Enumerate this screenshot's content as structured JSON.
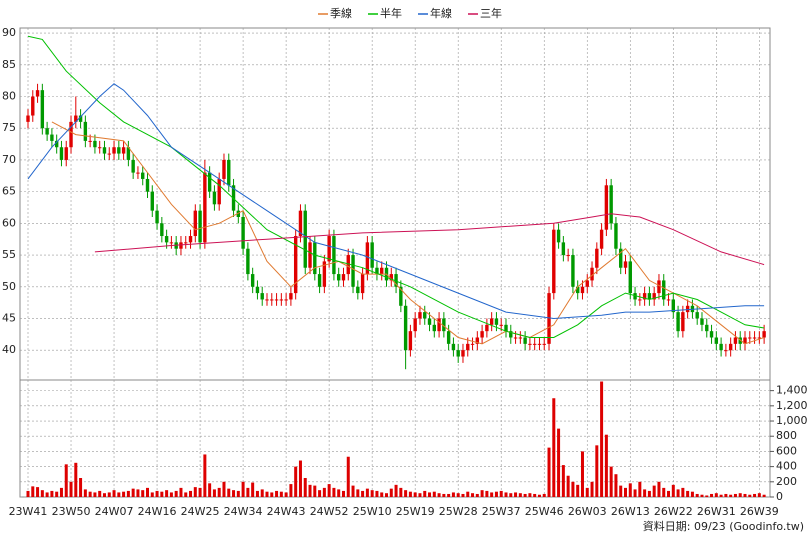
{
  "chart_data": {
    "type": "candlestick",
    "categories": [
      "23W41",
      null,
      null,
      null,
      null,
      null,
      null,
      null,
      null,
      "23W50",
      null,
      null,
      null,
      null,
      null,
      null,
      null,
      null,
      "24W07",
      null,
      null,
      null,
      null,
      null,
      null,
      null,
      null,
      "24W16",
      null,
      null,
      null,
      null,
      null,
      null,
      null,
      null,
      "24W25",
      null,
      null,
      null,
      null,
      null,
      null,
      null,
      null,
      "24W34",
      null,
      null,
      null,
      null,
      null,
      null,
      null,
      null,
      "24W43",
      null,
      null,
      null,
      null,
      null,
      null,
      null,
      null,
      "24W52",
      null,
      null,
      null,
      null,
      null,
      null,
      null,
      null,
      "25W10",
      null,
      null,
      null,
      null,
      null,
      null,
      null,
      null,
      "25W19",
      null,
      null,
      null,
      null,
      null,
      null,
      null,
      null,
      "25W28",
      null,
      null,
      null,
      null,
      null,
      null,
      null,
      null,
      "25W37",
      null,
      null,
      null,
      null,
      null,
      null,
      null,
      null,
      "25W46",
      null,
      null,
      null,
      null,
      null,
      null,
      null,
      null,
      "26W03",
      null,
      null,
      null,
      null,
      null,
      null,
      null,
      null,
      "26W13",
      null,
      null,
      null,
      null,
      null,
      null,
      null,
      null,
      "26W22",
      null,
      null,
      null,
      null,
      null,
      null,
      null,
      null,
      "26W31",
      null,
      null,
      null,
      null,
      null,
      null,
      null,
      null,
      "26W39",
      null
    ],
    "ohlc": [
      [
        76,
        78,
        75,
        77
      ],
      [
        77,
        81,
        76,
        80
      ],
      [
        80,
        82,
        79,
        81
      ],
      [
        81,
        82,
        74,
        75
      ],
      [
        75,
        76,
        73,
        74
      ],
      [
        74,
        75,
        72,
        73
      ],
      [
        73,
        74,
        71,
        72
      ],
      [
        72,
        73,
        69,
        70
      ],
      [
        70,
        73,
        69,
        72
      ],
      [
        72,
        77,
        71,
        76
      ],
      [
        76,
        80,
        75,
        77
      ],
      [
        77,
        78,
        75,
        76
      ],
      [
        76,
        77,
        72,
        73
      ],
      [
        73,
        74,
        72,
        73
      ],
      [
        73,
        74,
        71,
        72
      ],
      [
        72,
        73,
        71,
        72
      ],
      [
        72,
        73,
        70,
        71
      ],
      [
        71,
        72,
        70,
        71
      ],
      [
        71,
        73,
        70,
        72
      ],
      [
        72,
        73,
        70,
        71
      ],
      [
        71,
        73,
        70,
        72
      ],
      [
        72,
        73,
        69,
        70
      ],
      [
        70,
        71,
        67,
        68
      ],
      [
        68,
        69,
        67,
        68
      ],
      [
        68,
        69,
        66,
        67
      ],
      [
        67,
        68,
        64,
        65
      ],
      [
        65,
        66,
        61,
        62
      ],
      [
        62,
        63,
        59,
        60
      ],
      [
        60,
        61,
        57,
        58
      ],
      [
        58,
        59,
        56,
        57
      ],
      [
        57,
        58,
        56,
        57
      ],
      [
        57,
        58,
        55,
        56
      ],
      [
        56,
        58,
        55,
        57
      ],
      [
        57,
        58,
        56,
        57
      ],
      [
        57,
        59,
        56,
        58
      ],
      [
        58,
        63,
        57,
        62
      ],
      [
        62,
        63,
        56,
        57
      ],
      [
        57,
        70,
        56,
        68
      ],
      [
        68,
        69,
        64,
        65
      ],
      [
        65,
        66,
        62,
        63
      ],
      [
        63,
        68,
        62,
        67
      ],
      [
        67,
        71,
        66,
        70
      ],
      [
        70,
        71,
        65,
        66
      ],
      [
        66,
        67,
        61,
        62
      ],
      [
        62,
        63,
        60,
        61
      ],
      [
        61,
        62,
        55,
        56
      ],
      [
        56,
        57,
        51,
        52
      ],
      [
        52,
        53,
        49,
        50
      ],
      [
        50,
        51,
        48,
        49
      ],
      [
        49,
        50,
        47,
        48
      ],
      [
        48,
        49,
        47,
        48
      ],
      [
        48,
        49,
        47,
        48
      ],
      [
        48,
        49,
        47,
        48
      ],
      [
        48,
        49,
        47,
        48
      ],
      [
        48,
        49,
        47,
        48
      ],
      [
        48,
        50,
        47,
        49
      ],
      [
        49,
        59,
        48,
        58
      ],
      [
        58,
        63,
        57,
        62
      ],
      [
        62,
        63,
        52,
        53
      ],
      [
        53,
        58,
        52,
        57
      ],
      [
        57,
        58,
        51,
        52
      ],
      [
        52,
        53,
        49,
        50
      ],
      [
        50,
        55,
        49,
        54
      ],
      [
        54,
        59,
        53,
        58
      ],
      [
        58,
        59,
        51,
        52
      ],
      [
        52,
        53,
        50,
        51
      ],
      [
        51,
        53,
        50,
        52
      ],
      [
        52,
        56,
        51,
        55
      ],
      [
        55,
        56,
        49,
        50
      ],
      [
        50,
        51,
        48,
        49
      ],
      [
        49,
        53,
        48,
        52
      ],
      [
        52,
        58,
        51,
        57
      ],
      [
        57,
        58,
        52,
        53
      ],
      [
        53,
        54,
        51,
        52
      ],
      [
        52,
        54,
        51,
        53
      ],
      [
        53,
        54,
        50,
        51
      ],
      [
        51,
        53,
        50,
        52
      ],
      [
        52,
        53,
        49,
        50
      ],
      [
        50,
        51,
        46,
        47
      ],
      [
        47,
        48,
        37,
        40
      ],
      [
        40,
        44,
        39,
        43
      ],
      [
        43,
        46,
        42,
        45
      ],
      [
        45,
        47,
        44,
        46
      ],
      [
        46,
        47,
        44,
        45
      ],
      [
        45,
        46,
        43,
        44
      ],
      [
        44,
        45,
        42,
        43
      ],
      [
        43,
        46,
        42,
        45
      ],
      [
        45,
        46,
        42,
        43
      ],
      [
        43,
        44,
        40,
        41
      ],
      [
        41,
        42,
        39,
        40
      ],
      [
        40,
        41,
        38,
        39
      ],
      [
        39,
        41,
        38,
        40
      ],
      [
        40,
        42,
        39,
        41
      ],
      [
        41,
        42,
        40,
        41
      ],
      [
        41,
        43,
        40,
        42
      ],
      [
        42,
        44,
        41,
        43
      ],
      [
        43,
        45,
        42,
        44
      ],
      [
        44,
        46,
        43,
        45
      ],
      [
        45,
        46,
        43,
        44
      ],
      [
        44,
        45,
        43,
        44
      ],
      [
        44,
        45,
        42,
        43
      ],
      [
        43,
        44,
        41,
        42
      ],
      [
        42,
        43,
        41,
        42
      ],
      [
        42,
        43,
        41,
        42
      ],
      [
        42,
        43,
        40,
        41
      ],
      [
        41,
        42,
        40,
        41
      ],
      [
        41,
        42,
        40,
        41
      ],
      [
        41,
        42,
        40,
        41
      ],
      [
        41,
        42,
        40,
        41
      ],
      [
        41,
        50,
        40,
        49
      ],
      [
        49,
        60,
        48,
        59
      ],
      [
        59,
        60,
        56,
        57
      ],
      [
        57,
        58,
        54,
        55
      ],
      [
        55,
        56,
        54,
        55
      ],
      [
        55,
        56,
        49,
        50
      ],
      [
        50,
        51,
        48,
        49
      ],
      [
        49,
        51,
        48,
        50
      ],
      [
        50,
        52,
        49,
        51
      ],
      [
        51,
        54,
        50,
        53
      ],
      [
        53,
        57,
        52,
        56
      ],
      [
        56,
        60,
        55,
        59
      ],
      [
        59,
        67,
        58,
        66
      ],
      [
        66,
        67,
        59,
        60
      ],
      [
        60,
        61,
        55,
        56
      ],
      [
        56,
        57,
        52,
        53
      ],
      [
        53,
        55,
        52,
        54
      ],
      [
        54,
        55,
        48,
        49
      ],
      [
        49,
        50,
        47,
        48
      ],
      [
        48,
        49,
        47,
        48
      ],
      [
        48,
        50,
        47,
        49
      ],
      [
        49,
        50,
        47,
        48
      ],
      [
        48,
        50,
        47,
        49
      ],
      [
        49,
        52,
        48,
        51
      ],
      [
        51,
        52,
        47,
        48
      ],
      [
        48,
        49,
        47,
        48
      ],
      [
        48,
        49,
        45,
        46
      ],
      [
        46,
        47,
        42,
        43
      ],
      [
        43,
        47,
        42,
        46
      ],
      [
        46,
        48,
        45,
        47
      ],
      [
        47,
        48,
        45,
        46
      ],
      [
        46,
        47,
        44,
        45
      ],
      [
        45,
        46,
        43,
        44
      ],
      [
        44,
        45,
        42,
        43
      ],
      [
        43,
        44,
        41,
        42
      ],
      [
        42,
        43,
        40,
        41
      ],
      [
        41,
        42,
        39,
        40
      ],
      [
        40,
        41,
        39,
        40
      ],
      [
        40,
        42,
        39,
        41
      ],
      [
        41,
        43,
        40,
        42
      ],
      [
        42,
        43,
        40,
        41
      ],
      [
        41,
        43,
        40,
        42
      ],
      [
        42,
        43,
        41,
        42
      ],
      [
        42,
        43,
        41,
        42
      ],
      [
        42,
        43,
        41,
        42
      ],
      [
        42,
        44,
        41,
        43
      ]
    ],
    "up_color": "#e00000",
    "down_color": "#009900",
    "ylim": [
      35.3,
      90.8
    ],
    "yticks": [
      40,
      45,
      50,
      55,
      60,
      65,
      70,
      75,
      80,
      85,
      90
    ],
    "grid": true,
    "series": [
      {
        "name": "季線",
        "color": "#e07a30",
        "x": [
          5,
          10,
          20,
          30,
          35,
          40,
          45,
          50,
          55,
          60,
          65,
          70,
          75,
          80,
          85,
          90,
          95,
          100,
          105,
          110,
          115,
          120,
          125,
          130,
          135,
          140,
          145,
          150,
          154
        ],
        "values": [
          76,
          74,
          73,
          63,
          59,
          60,
          62,
          54,
          50,
          53,
          54,
          52,
          52,
          48,
          45,
          42,
          41,
          43,
          42,
          44,
          50,
          53,
          56,
          51,
          49,
          47,
          44,
          41,
          42
        ]
      },
      {
        "name": "半年",
        "color": "#00c000",
        "x": [
          0,
          3,
          8,
          15,
          20,
          30,
          40,
          50,
          60,
          70,
          80,
          90,
          100,
          105,
          110,
          115,
          120,
          125,
          130,
          135,
          140,
          145,
          150,
          154
        ],
        "values": [
          89.5,
          89,
          84,
          79,
          76,
          72,
          66,
          59,
          55,
          53,
          50,
          46,
          43,
          42,
          42,
          44,
          47,
          49,
          48,
          49,
          48,
          46,
          44,
          43.5
        ]
      },
      {
        "name": "年線",
        "color": "#2266cc",
        "x": [
          0,
          5,
          10,
          15,
          18,
          20,
          25,
          30,
          40,
          50,
          60,
          70,
          80,
          90,
          100,
          110,
          120,
          125,
          130,
          140,
          150,
          154
        ],
        "values": [
          67,
          72,
          76,
          80,
          82,
          81,
          77,
          72,
          67,
          62,
          57,
          55,
          52,
          49,
          46,
          45,
          45.5,
          46,
          46,
          46.5,
          47,
          47
        ]
      },
      {
        "name": "三年",
        "color": "#cc1155",
        "x": [
          14,
          30,
          50,
          70,
          90,
          110,
          118,
          122,
          128,
          135,
          145,
          154
        ],
        "values": [
          55.5,
          56.5,
          57.5,
          58.5,
          59,
          60,
          61,
          61.5,
          61,
          59,
          55.5,
          53.5
        ]
      }
    ],
    "volume": {
      "color": "#dd0000",
      "ylim": [
        0,
        1540
      ],
      "yticks": [
        0,
        200,
        400,
        600,
        800,
        {
          "value": 1000,
          "label": "1,000"
        },
        {
          "value": 1200,
          "label": "1,200"
        },
        {
          "value": 1400,
          "label": "1,400"
        }
      ],
      "values": [
        80,
        140,
        130,
        90,
        60,
        80,
        70,
        120,
        430,
        200,
        450,
        250,
        100,
        70,
        60,
        80,
        50,
        60,
        90,
        60,
        70,
        80,
        110,
        100,
        90,
        120,
        60,
        80,
        70,
        90,
        60,
        80,
        120,
        60,
        80,
        130,
        120,
        560,
        180,
        100,
        120,
        200,
        110,
        90,
        80,
        200,
        120,
        190,
        80,
        100,
        70,
        60,
        80,
        70,
        60,
        170,
        400,
        480,
        250,
        160,
        150,
        90,
        120,
        170,
        120,
        100,
        80,
        530,
        150,
        100,
        80,
        110,
        90,
        80,
        60,
        50,
        110,
        160,
        120,
        90,
        70,
        60,
        50,
        80,
        60,
        70,
        50,
        40,
        40,
        60,
        50,
        40,
        70,
        50,
        40,
        90,
        80,
        60,
        70,
        80,
        60,
        50,
        60,
        50,
        40,
        50,
        40,
        30,
        40,
        650,
        1300,
        900,
        420,
        280,
        200,
        160,
        600,
        120,
        200,
        680,
        1520,
        820,
        400,
        300,
        150,
        120,
        180,
        100,
        200,
        100,
        80,
        150,
        200,
        120,
        80,
        160,
        100,
        120,
        80,
        70,
        40,
        30,
        20,
        40,
        50,
        30,
        40,
        30,
        40,
        50,
        40,
        30,
        40,
        50,
        30
      ]
    },
    "note": "資料日期: 09/23  (Goodinfo.tw)"
  }
}
